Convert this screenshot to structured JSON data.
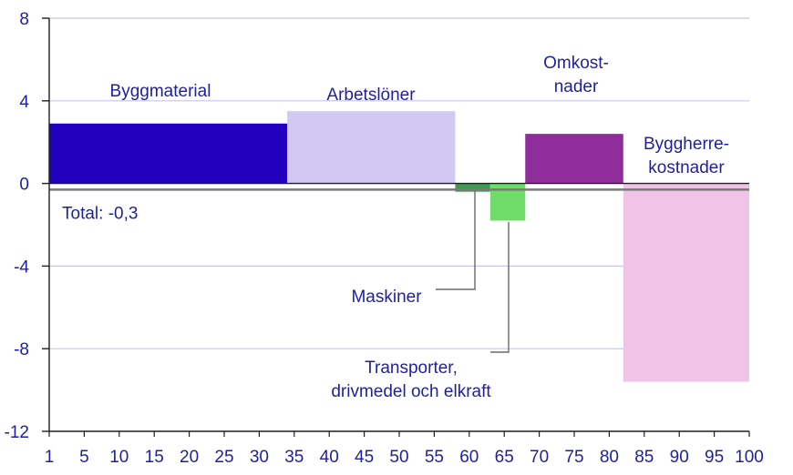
{
  "chart_data": {
    "type": "bar",
    "title": "",
    "xlabel": "",
    "ylabel": "",
    "xlim": [
      0,
      100
    ],
    "ylim": [
      -12,
      8
    ],
    "x_ticks": [
      1,
      5,
      10,
      15,
      20,
      25,
      30,
      35,
      40,
      45,
      50,
      55,
      60,
      65,
      70,
      75,
      80,
      85,
      90,
      95,
      100
    ],
    "y_ticks": [
      8,
      4,
      0,
      -4,
      -8,
      -12
    ],
    "y_tick_labels": [
      "8",
      "4",
      "0",
      "-4",
      "-8",
      "-12"
    ],
    "grid": true,
    "series": [
      {
        "name": "Byggmaterial",
        "x_start": 0,
        "x_end": 34,
        "value": 2.9,
        "color": "#2200c0",
        "label_lines": [
          "Byggmaterial"
        ]
      },
      {
        "name": "Arbetslöner",
        "x_start": 34,
        "x_end": 58,
        "value": 3.5,
        "color": "#d1c9f2",
        "label_lines": [
          "Arbetslöner"
        ]
      },
      {
        "name": "Maskiner",
        "x_start": 58,
        "x_end": 63,
        "value": -0.4,
        "color": "#3f9a54",
        "label_lines": [
          "Maskiner"
        ]
      },
      {
        "name": "Transporter, drivmedel och elkraft",
        "x_start": 63,
        "x_end": 68,
        "value": -1.8,
        "color": "#6fdc6a",
        "label_lines": [
          "Transporter,",
          "drivmedel och elkraft"
        ]
      },
      {
        "name": "Omkostnader",
        "x_start": 68,
        "x_end": 82,
        "value": 2.4,
        "color": "#902d9c",
        "label_lines": [
          "Omkost-",
          "nader"
        ]
      },
      {
        "name": "Byggherrekostnader",
        "x_start": 82,
        "x_end": 100,
        "value": -9.6,
        "color": "#f0c4e6",
        "label_lines": [
          "Byggherre-",
          "kostnader"
        ]
      }
    ],
    "total": {
      "label": "Total: -0,3",
      "value": -0.3,
      "color": "#7a7a7a"
    }
  },
  "colors": {
    "axis_text": "#1f1fa0",
    "grid": "#c8c4ee",
    "axis": "#1f1f1f",
    "leader": "#6a6a6a"
  }
}
